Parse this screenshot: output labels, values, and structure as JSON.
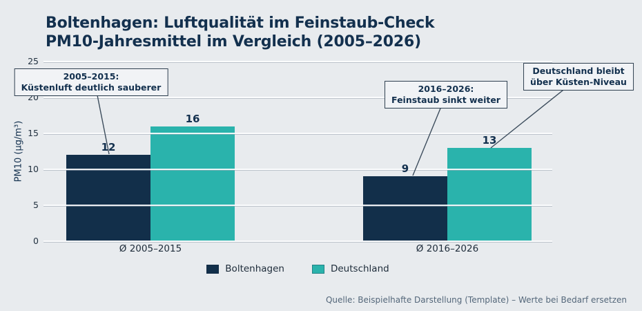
{
  "header": {
    "title_line1": "Boltenhagen: Luftqualität im Feinstaub-Check",
    "title_line2": "PM10-Jahresmittel im Vergleich (2005–2026)"
  },
  "chart_data": {
    "type": "bar",
    "categories": [
      "Ø 2005–2015",
      "Ø 2016–2026"
    ],
    "series": [
      {
        "name": "Boltenhagen",
        "values": [
          12,
          9
        ],
        "color": "#122f4a"
      },
      {
        "name": "Deutschland",
        "values": [
          16,
          13
        ],
        "color": "#2ab3ac"
      }
    ],
    "ylabel": "PM10 (µg/m³)",
    "xlabel": "",
    "ylim": [
      0,
      25
    ],
    "yticks": [
      0,
      5,
      10,
      15,
      20,
      25
    ],
    "grid": true,
    "legend_position": "bottom-center",
    "annotations": [
      {
        "line1": "2005–2015:",
        "line2": "Küstenluft deutlich sauberer"
      },
      {
        "line1": "2016–2026:",
        "line2": "Feinstaub sinkt weiter"
      },
      {
        "line1": "Deutschland bleibt",
        "line2": "über Küsten-Niveau"
      }
    ]
  },
  "footer": {
    "source": "Quelle: Beispielhafte Darstellung (Template) – Werte bei Bedarf ersetzen"
  },
  "colors": {
    "background": "#e8ebee",
    "boltenhagen": "#122f4a",
    "deutschland": "#2ab3ac",
    "title_text": "#13304e",
    "gridline": "#f3f5f7",
    "annotation_border": "#2e3f4f",
    "annotation_bg": "#f1f3f6",
    "source_text": "#54677a"
  }
}
